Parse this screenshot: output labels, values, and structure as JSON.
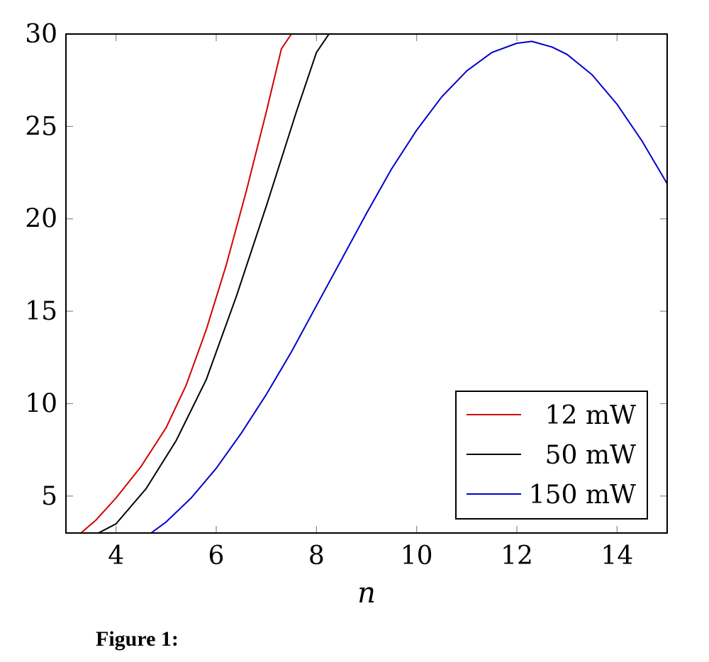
{
  "caption": "Figure 1:",
  "chart_data": {
    "type": "line",
    "xlabel": "n",
    "ylabel": "",
    "xlim": [
      3,
      15
    ],
    "ylim": [
      3,
      30
    ],
    "xticks": [
      4,
      6,
      8,
      10,
      12,
      14
    ],
    "yticks": [
      5,
      10,
      15,
      20,
      25,
      30
    ],
    "grid": false,
    "legend_position": "bottom-right",
    "series": [
      {
        "name": "12 mW",
        "color": "#d40000",
        "x": [
          3.3,
          3.6,
          4.0,
          4.5,
          5.0,
          5.4,
          5.8,
          6.2,
          6.6,
          7.0,
          7.3,
          7.5
        ],
        "y": [
          3.0,
          3.7,
          4.9,
          6.6,
          8.7,
          11.0,
          14.0,
          17.5,
          21.5,
          25.8,
          29.2,
          30.0
        ]
      },
      {
        "name": "50 mW",
        "color": "#000000",
        "x": [
          3.65,
          4.0,
          4.6,
          5.2,
          5.8,
          6.4,
          7.0,
          7.6,
          8.0,
          8.25
        ],
        "y": [
          3.0,
          3.5,
          5.4,
          8.0,
          11.3,
          15.8,
          20.7,
          25.8,
          29.0,
          30.0
        ]
      },
      {
        "name": "150 mW",
        "color": "#0000cc",
        "x": [
          4.7,
          5.0,
          5.5,
          6.0,
          6.5,
          7.0,
          7.5,
          8.0,
          8.5,
          9.0,
          9.5,
          10.0,
          10.5,
          11.0,
          11.5,
          12.0,
          12.3,
          12.7,
          13.0,
          13.5,
          14.0,
          14.5,
          15.0
        ],
        "y": [
          3.0,
          3.6,
          4.9,
          6.5,
          8.4,
          10.5,
          12.8,
          15.3,
          17.8,
          20.3,
          22.7,
          24.8,
          26.6,
          28.0,
          29.0,
          29.5,
          29.6,
          29.3,
          28.9,
          27.8,
          26.2,
          24.2,
          21.9
        ]
      }
    ]
  }
}
